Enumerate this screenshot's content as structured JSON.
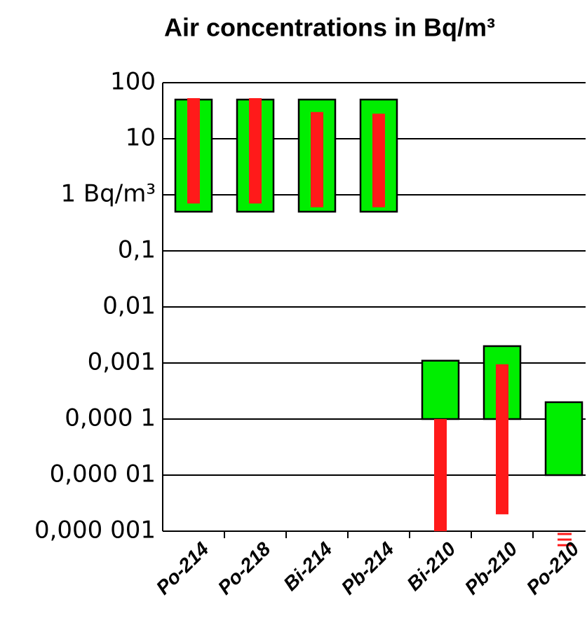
{
  "chart_data": {
    "type": "range-bar",
    "title": "Air concentrations in Bq/m³",
    "categories": [
      "Po-214",
      "Po-218",
      "Bi-214",
      "Pb-214",
      "Bi-210",
      "Pb-210",
      "Po-210"
    ],
    "ranges": [
      {
        "color": "#00ee00",
        "low": [
          0.5,
          0.5,
          0.5,
          0.5,
          0.0001,
          0.0001,
          1e-05
        ],
        "high": [
          50,
          50,
          50,
          50,
          0.0011,
          0.002,
          0.0002
        ]
      },
      {
        "color": "#ff1a1a",
        "low": [
          0.7,
          0.7,
          0.6,
          0.6,
          1e-06,
          2e-06,
          null
        ],
        "high": [
          53,
          53,
          30,
          28,
          0.0001,
          0.00095,
          null
        ]
      }
    ],
    "log_scale": true,
    "ylim": [
      1e-06,
      100
    ],
    "yticks": [
      100,
      10,
      {
        "value": 1,
        "label": "1 Bq/m³"
      },
      {
        "value": 0.1,
        "label": "0,1"
      },
      {
        "value": 0.01,
        "label": "0,01"
      },
      {
        "value": 0.001,
        "label": "0,001"
      },
      {
        "value": 0.0001,
        "label": "0,000 1"
      },
      {
        "value": 1e-05,
        "label": "0,000 01"
      },
      {
        "value": 1e-06,
        "label": "0,000 001"
      }
    ],
    "grid": true
  }
}
